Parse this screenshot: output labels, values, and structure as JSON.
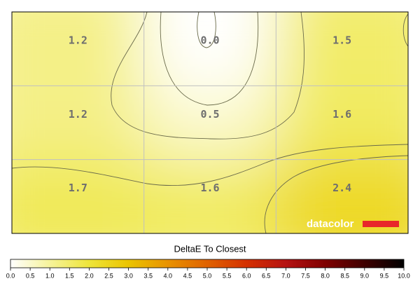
{
  "chart_data": {
    "type": "heatmap",
    "title": "DeltaE To Closest",
    "values": [
      [
        1.2,
        0.0,
        1.5
      ],
      [
        1.2,
        0.5,
        1.6
      ],
      [
        1.7,
        1.6,
        2.4
      ]
    ],
    "value_labels": [
      [
        "1.2",
        "0.0",
        "1.5"
      ],
      [
        "1.2",
        "0.5",
        "1.6"
      ],
      [
        "1.7",
        "1.6",
        "2.4"
      ]
    ],
    "clim": [
      0,
      10
    ],
    "colormap": [
      "#ffffff",
      "#f6f39a",
      "#eee53a",
      "#ebc400",
      "#e89200",
      "#e06200",
      "#d43000",
      "#b51212",
      "#7f0000",
      "#3f0000",
      "#000000"
    ],
    "cticks": [
      {
        "value": 0,
        "label": "0.0"
      },
      {
        "value": 0.5,
        "label": "0.5"
      },
      {
        "value": 1,
        "label": "1.0"
      },
      {
        "value": 1.5,
        "label": "1.5"
      },
      {
        "value": 2,
        "label": "2.0"
      },
      {
        "value": 2.5,
        "label": "2.5"
      },
      {
        "value": 3,
        "label": "3.0"
      },
      {
        "value": 3.5,
        "label": "3.5"
      },
      {
        "value": 4,
        "label": "4.0"
      },
      {
        "value": 4.5,
        "label": "4.5"
      },
      {
        "value": 5,
        "label": "5.0"
      },
      {
        "value": 5.5,
        "label": "5.5"
      },
      {
        "value": 6,
        "label": "6.0"
      },
      {
        "value": 6.5,
        "label": "6.5"
      },
      {
        "value": 7,
        "label": "7.0"
      },
      {
        "value": 7.5,
        "label": "7.5"
      },
      {
        "value": 8,
        "label": "8.0"
      },
      {
        "value": 8.5,
        "label": "8.5"
      },
      {
        "value": 9,
        "label": "9.0"
      },
      {
        "value": 9.5,
        "label": "9.5"
      },
      {
        "value": 10,
        "label": "10.0"
      }
    ],
    "grid": true,
    "watermark": "datacolor"
  }
}
